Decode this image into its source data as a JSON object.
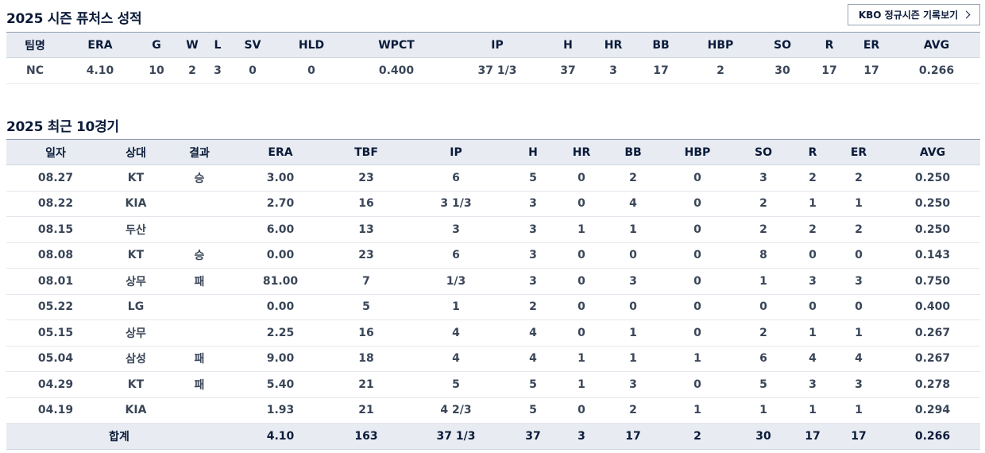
{
  "season": {
    "title": "2025 시즌 퓨처스 성적",
    "button_label": "KBO 정규시즌 기록보기",
    "headers": [
      "팀명",
      "ERA",
      "G",
      "W",
      "L",
      "SV",
      "HLD",
      "WPCT",
      "IP",
      "H",
      "HR",
      "BB",
      "HBP",
      "SO",
      "R",
      "ER",
      "AVG"
    ],
    "row": [
      "NC",
      "4.10",
      "10",
      "2",
      "3",
      "0",
      "0",
      "0.400",
      "37 1/3",
      "37",
      "3",
      "17",
      "2",
      "30",
      "17",
      "17",
      "0.266"
    ]
  },
  "recent": {
    "title": "2025 최근 10경기",
    "headers": [
      "일자",
      "상대",
      "결과",
      "ERA",
      "TBF",
      "IP",
      "H",
      "HR",
      "BB",
      "HBP",
      "SO",
      "R",
      "ER",
      "AVG"
    ],
    "rows": [
      [
        "08.27",
        "KT",
        "승",
        "3.00",
        "23",
        "6",
        "5",
        "0",
        "2",
        "0",
        "3",
        "2",
        "2",
        "0.250"
      ],
      [
        "08.22",
        "KIA",
        "",
        "2.70",
        "16",
        "3 1/3",
        "3",
        "0",
        "4",
        "0",
        "2",
        "1",
        "1",
        "0.250"
      ],
      [
        "08.15",
        "두산",
        "",
        "6.00",
        "13",
        "3",
        "3",
        "1",
        "1",
        "0",
        "2",
        "2",
        "2",
        "0.250"
      ],
      [
        "08.08",
        "KT",
        "승",
        "0.00",
        "23",
        "6",
        "3",
        "0",
        "0",
        "0",
        "8",
        "0",
        "0",
        "0.143"
      ],
      [
        "08.01",
        "상무",
        "패",
        "81.00",
        "7",
        "1/3",
        "3",
        "0",
        "3",
        "0",
        "1",
        "3",
        "3",
        "0.750"
      ],
      [
        "05.22",
        "LG",
        "",
        "0.00",
        "5",
        "1",
        "2",
        "0",
        "0",
        "0",
        "0",
        "0",
        "0",
        "0.400"
      ],
      [
        "05.15",
        "상무",
        "",
        "2.25",
        "16",
        "4",
        "4",
        "0",
        "1",
        "0",
        "2",
        "1",
        "1",
        "0.267"
      ],
      [
        "05.04",
        "삼성",
        "패",
        "9.00",
        "18",
        "4",
        "4",
        "1",
        "1",
        "1",
        "6",
        "4",
        "4",
        "0.267"
      ],
      [
        "04.29",
        "KT",
        "패",
        "5.40",
        "21",
        "5",
        "5",
        "1",
        "3",
        "0",
        "5",
        "3",
        "3",
        "0.278"
      ],
      [
        "04.19",
        "KIA",
        "",
        "1.93",
        "21",
        "4 2/3",
        "5",
        "0",
        "2",
        "1",
        "1",
        "1",
        "1",
        "0.294"
      ]
    ],
    "total_label": "합계",
    "total": [
      "4.10",
      "163",
      "37 1/3",
      "37",
      "3",
      "17",
      "2",
      "30",
      "17",
      "17",
      "0.266"
    ]
  }
}
